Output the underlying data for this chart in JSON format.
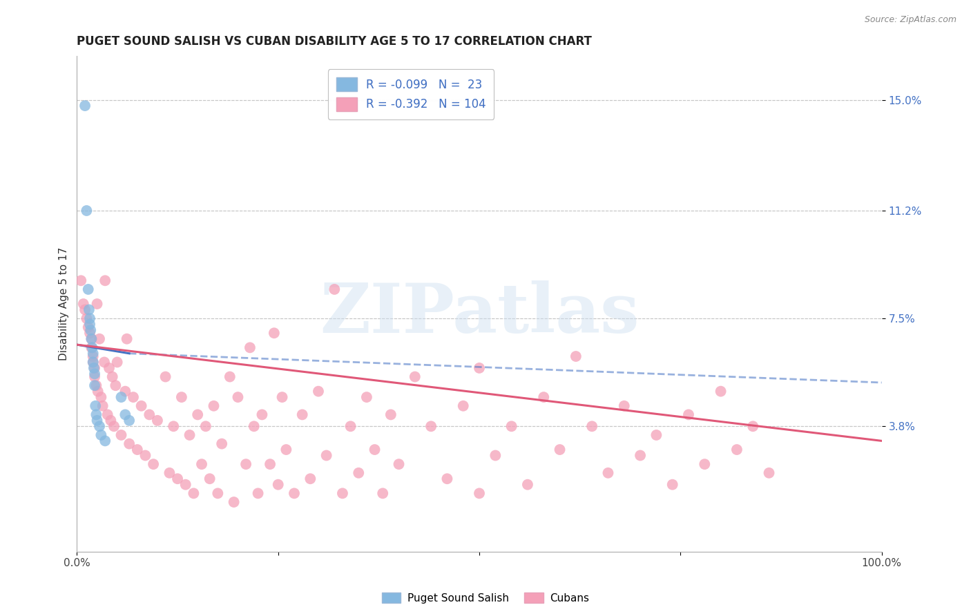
{
  "title": "PUGET SOUND SALISH VS CUBAN DISABILITY AGE 5 TO 17 CORRELATION CHART",
  "source": "Source: ZipAtlas.com",
  "ylabel": "Disability Age 5 to 17",
  "xlim": [
    0.0,
    1.0
  ],
  "ylim": [
    -0.005,
    0.165
  ],
  "yticks": [
    0.038,
    0.075,
    0.112,
    0.15
  ],
  "ytick_labels": [
    "3.8%",
    "7.5%",
    "11.2%",
    "15.0%"
  ],
  "xticks": [
    0.0,
    0.25,
    0.5,
    0.75,
    1.0
  ],
  "xtick_labels": [
    "0.0%",
    "",
    "",
    "",
    "100.0%"
  ],
  "blue_color": "#85b8e0",
  "pink_color": "#f4a0b8",
  "blue_line_color": "#4472c4",
  "pink_line_color": "#e05878",
  "R_blue": -0.099,
  "N_blue": 23,
  "R_pink": -0.392,
  "N_pink": 104,
  "watermark": "ZIPatlas",
  "legend_label_blue": "Puget Sound Salish",
  "legend_label_pink": "Cubans",
  "blue_scatter_x": [
    0.01,
    0.012,
    0.014,
    0.015,
    0.016,
    0.016,
    0.017,
    0.018,
    0.019,
    0.02,
    0.02,
    0.021,
    0.022,
    0.022,
    0.023,
    0.024,
    0.025,
    0.028,
    0.03,
    0.035,
    0.055,
    0.06,
    0.065
  ],
  "blue_scatter_y": [
    0.148,
    0.112,
    0.085,
    0.078,
    0.075,
    0.073,
    0.071,
    0.068,
    0.065,
    0.063,
    0.06,
    0.058,
    0.056,
    0.052,
    0.045,
    0.042,
    0.04,
    0.038,
    0.035,
    0.033,
    0.048,
    0.042,
    0.04
  ],
  "pink_scatter_x": [
    0.005,
    0.008,
    0.01,
    0.012,
    0.014,
    0.016,
    0.018,
    0.018,
    0.02,
    0.02,
    0.022,
    0.022,
    0.024,
    0.025,
    0.026,
    0.028,
    0.03,
    0.032,
    0.034,
    0.035,
    0.038,
    0.04,
    0.042,
    0.044,
    0.046,
    0.048,
    0.05,
    0.055,
    0.06,
    0.062,
    0.065,
    0.07,
    0.075,
    0.08,
    0.085,
    0.09,
    0.095,
    0.1,
    0.11,
    0.115,
    0.12,
    0.125,
    0.13,
    0.135,
    0.14,
    0.145,
    0.15,
    0.155,
    0.16,
    0.165,
    0.17,
    0.175,
    0.18,
    0.19,
    0.195,
    0.2,
    0.21,
    0.215,
    0.22,
    0.225,
    0.23,
    0.24,
    0.245,
    0.25,
    0.255,
    0.26,
    0.27,
    0.28,
    0.29,
    0.3,
    0.31,
    0.32,
    0.33,
    0.34,
    0.35,
    0.36,
    0.37,
    0.38,
    0.39,
    0.4,
    0.42,
    0.44,
    0.46,
    0.48,
    0.5,
    0.5,
    0.52,
    0.54,
    0.56,
    0.58,
    0.6,
    0.62,
    0.64,
    0.66,
    0.68,
    0.7,
    0.72,
    0.74,
    0.76,
    0.78,
    0.8,
    0.82,
    0.84,
    0.86
  ],
  "pink_scatter_y": [
    0.088,
    0.08,
    0.078,
    0.075,
    0.072,
    0.07,
    0.068,
    0.065,
    0.062,
    0.06,
    0.058,
    0.055,
    0.052,
    0.08,
    0.05,
    0.068,
    0.048,
    0.045,
    0.06,
    0.088,
    0.042,
    0.058,
    0.04,
    0.055,
    0.038,
    0.052,
    0.06,
    0.035,
    0.05,
    0.068,
    0.032,
    0.048,
    0.03,
    0.045,
    0.028,
    0.042,
    0.025,
    0.04,
    0.055,
    0.022,
    0.038,
    0.02,
    0.048,
    0.018,
    0.035,
    0.015,
    0.042,
    0.025,
    0.038,
    0.02,
    0.045,
    0.015,
    0.032,
    0.055,
    0.012,
    0.048,
    0.025,
    0.065,
    0.038,
    0.015,
    0.042,
    0.025,
    0.07,
    0.018,
    0.048,
    0.03,
    0.015,
    0.042,
    0.02,
    0.05,
    0.028,
    0.085,
    0.015,
    0.038,
    0.022,
    0.048,
    0.03,
    0.015,
    0.042,
    0.025,
    0.055,
    0.038,
    0.02,
    0.045,
    0.015,
    0.058,
    0.028,
    0.038,
    0.018,
    0.048,
    0.03,
    0.062,
    0.038,
    0.022,
    0.045,
    0.028,
    0.035,
    0.018,
    0.042,
    0.025,
    0.05,
    0.03,
    0.038,
    0.022
  ],
  "blue_line_x0": 0.0,
  "blue_line_y0": 0.066,
  "blue_line_x1": 0.065,
  "blue_line_y1": 0.063,
  "blue_line_dash_x1": 1.0,
  "blue_line_dash_y1": 0.053,
  "pink_line_x0": 0.0,
  "pink_line_y0": 0.066,
  "pink_line_x1": 1.0,
  "pink_line_y1": 0.033
}
